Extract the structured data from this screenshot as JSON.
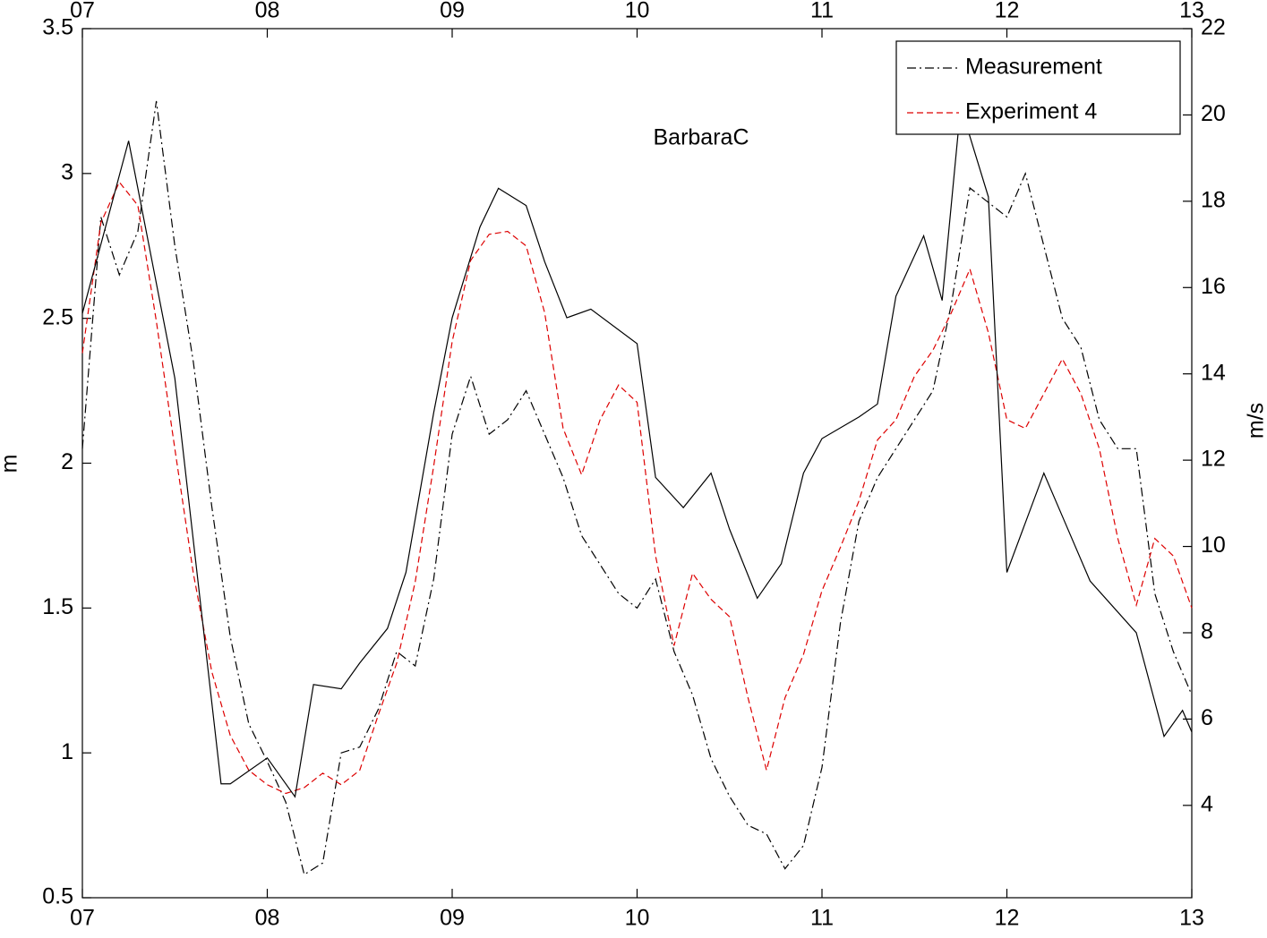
{
  "chart_data": {
    "type": "line",
    "annotation": "BarbaraC",
    "ylabel": "m",
    "y2label": "m/s",
    "legend": "upper right",
    "x": [
      7.0,
      7.1,
      7.2,
      7.3,
      7.4,
      7.5,
      7.6,
      7.7,
      7.8,
      7.9,
      8.0,
      8.1,
      8.2,
      8.3,
      8.4,
      8.5,
      8.6,
      8.7,
      8.8,
      8.9,
      9.0,
      9.1,
      9.2,
      9.3,
      9.4,
      9.5,
      9.6,
      9.7,
      9.8,
      9.9,
      10.0,
      10.1,
      10.2,
      10.3,
      10.4,
      10.5,
      10.6,
      10.7,
      10.8,
      10.9,
      11.0,
      11.1,
      11.2,
      11.3,
      11.4,
      11.5,
      11.6,
      11.7,
      11.8,
      11.9,
      12.0,
      12.1,
      12.2,
      12.3,
      12.4,
      12.5,
      12.6,
      12.7,
      12.8,
      12.9,
      13.0
    ],
    "series": [
      {
        "name": "Measurement",
        "color": "#000000",
        "dash": "10,4,2,4",
        "values": [
          2.05,
          2.85,
          2.65,
          2.8,
          3.25,
          2.75,
          2.35,
          1.85,
          1.4,
          1.1,
          0.97,
          0.83,
          0.58,
          0.62,
          1.0,
          1.02,
          1.15,
          1.35,
          1.3,
          1.6,
          2.1,
          2.3,
          2.1,
          2.15,
          2.25,
          2.1,
          1.95,
          1.75,
          1.65,
          1.55,
          1.5,
          1.6,
          1.35,
          1.2,
          0.98,
          0.85,
          0.75,
          0.72,
          0.6,
          0.68,
          0.95,
          1.45,
          1.8,
          1.95,
          2.05,
          2.15,
          2.25,
          2.55,
          2.95,
          2.9,
          2.85,
          3.0,
          2.75,
          2.5,
          2.4,
          2.15,
          2.05,
          2.05,
          1.55,
          1.35,
          1.2
        ]
      },
      {
        "name": "Experiment 4",
        "color": "#dd0000",
        "dash": "7,4",
        "values": [
          2.38,
          2.83,
          2.97,
          2.89,
          2.49,
          2.05,
          1.62,
          1.28,
          1.06,
          0.94,
          0.89,
          0.86,
          0.88,
          0.93,
          0.89,
          0.94,
          1.13,
          1.31,
          1.59,
          1.99,
          2.42,
          2.7,
          2.79,
          2.8,
          2.75,
          2.52,
          2.12,
          1.96,
          2.15,
          2.27,
          2.21,
          1.68,
          1.37,
          1.62,
          1.53,
          1.47,
          1.19,
          0.94,
          1.19,
          1.34,
          1.56,
          1.71,
          1.87,
          2.08,
          2.15,
          2.3,
          2.39,
          2.52,
          2.67,
          2.45,
          2.15,
          2.12,
          2.24,
          2.36,
          2.24,
          2.05,
          1.74,
          1.51,
          1.74,
          1.68,
          1.5
        ]
      },
      {
        "color": "#000000",
        "axis": "y2",
        "x": [
          7.0,
          7.25,
          7.5,
          7.75,
          7.8,
          8.0,
          8.15,
          8.25,
          8.4,
          8.5,
          8.65,
          8.75,
          8.9,
          9.0,
          9.15,
          9.25,
          9.4,
          9.5,
          9.62,
          9.75,
          10.0,
          10.1,
          10.25,
          10.4,
          10.5,
          10.65,
          10.78,
          10.9,
          11.0,
          11.2,
          11.3,
          11.4,
          11.55,
          11.65,
          11.75,
          11.9,
          12.0,
          12.2,
          12.3,
          12.45,
          12.7,
          12.85,
          12.95,
          13.0
        ],
        "values": [
          15.4,
          19.4,
          13.9,
          4.5,
          4.5,
          5.1,
          4.2,
          6.8,
          6.7,
          7.3,
          8.1,
          9.4,
          13.1,
          15.3,
          17.4,
          18.3,
          17.9,
          16.6,
          15.3,
          15.5,
          14.7,
          11.6,
          10.9,
          11.7,
          10.4,
          8.8,
          9.6,
          11.7,
          12.5,
          13.0,
          13.3,
          15.8,
          17.2,
          15.7,
          20.2,
          18.1,
          9.4,
          11.7,
          10.7,
          9.2,
          8.0,
          5.6,
          6.2,
          5.7
        ]
      }
    ],
    "xlim": [
      7,
      13
    ],
    "xticks": [
      {
        "value": 7,
        "label": "07"
      },
      {
        "value": 8,
        "label": "08"
      },
      {
        "value": 9,
        "label": "09"
      },
      {
        "value": 10,
        "label": "10"
      },
      {
        "value": 11,
        "label": "11"
      },
      {
        "value": 12,
        "label": "12"
      },
      {
        "value": 13,
        "label": "13"
      }
    ],
    "ylim": [
      0.5,
      3.5
    ],
    "yticks": [
      0.5,
      1,
      1.5,
      2,
      2.5,
      3,
      3.5
    ],
    "y2lim": [
      1.86,
      22
    ],
    "y2ticks": [
      4,
      6,
      8,
      10,
      12,
      14,
      16,
      18,
      20,
      22
    ]
  }
}
